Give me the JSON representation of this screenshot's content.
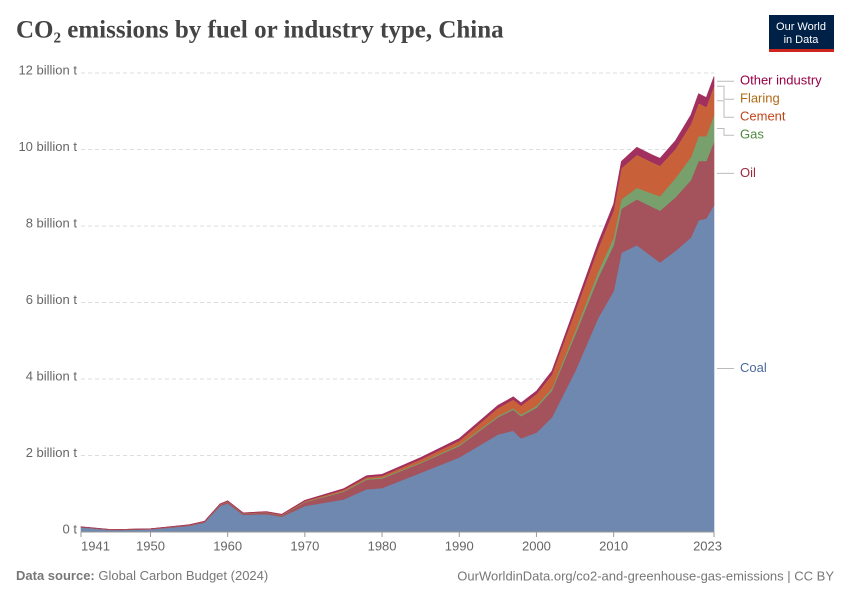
{
  "chart_data": {
    "type": "stacked-area",
    "title": "CO₂ emissions by fuel or industry type, China",
    "logo": [
      "Our World",
      "in Data"
    ],
    "source_label": "Data source:",
    "source": "Global Carbon Budget (2024)",
    "url": "OurWorldinData.org/co2-and-greenhouse-gas-emissions | CC BY",
    "x": [
      1941,
      1945,
      1950,
      1955,
      1957,
      1959,
      1960,
      1962,
      1965,
      1967,
      1970,
      1975,
      1978,
      1980,
      1985,
      1990,
      1995,
      1997,
      1998,
      2000,
      2002,
      2005,
      2008,
      2010,
      2011,
      2013,
      2015,
      2016,
      2018,
      2020,
      2021,
      2022,
      2023
    ],
    "xlim": [
      1941,
      2023
    ],
    "xticks": [
      1941,
      1950,
      1960,
      1970,
      1980,
      1990,
      2000,
      2010,
      2023
    ],
    "ylim": [
      0,
      12
    ],
    "yticks": [
      {
        "value": 0,
        "label": "0 t"
      },
      {
        "value": 2,
        "label": "2 billion t"
      },
      {
        "value": 4,
        "label": "4 billion t"
      },
      {
        "value": 6,
        "label": "6 billion t"
      },
      {
        "value": 8,
        "label": "8 billion t"
      },
      {
        "value": 10,
        "label": "10 billion t"
      },
      {
        "value": 12,
        "label": "12 billion t"
      }
    ],
    "grid": true,
    "series": [
      {
        "name": "Coal",
        "color": "#6f88b0",
        "label_color": "#4c6a9c",
        "values": [
          0.12,
          0.05,
          0.07,
          0.16,
          0.25,
          0.68,
          0.75,
          0.45,
          0.47,
          0.4,
          0.68,
          0.85,
          1.12,
          1.15,
          1.55,
          1.95,
          2.55,
          2.65,
          2.45,
          2.6,
          3.0,
          4.2,
          5.6,
          6.3,
          7.3,
          7.5,
          7.2,
          7.05,
          7.35,
          7.7,
          8.15,
          8.2,
          8.55
        ]
      },
      {
        "name": "Oil",
        "color": "#a4525b",
        "label_color": "#9a2a3c",
        "values": [
          0.01,
          0.01,
          0.01,
          0.02,
          0.02,
          0.03,
          0.04,
          0.03,
          0.04,
          0.04,
          0.1,
          0.2,
          0.25,
          0.25,
          0.25,
          0.3,
          0.45,
          0.55,
          0.58,
          0.65,
          0.7,
          0.95,
          1.05,
          1.2,
          1.15,
          1.2,
          1.3,
          1.35,
          1.4,
          1.5,
          1.55,
          1.5,
          1.65
        ]
      },
      {
        "name": "Gas",
        "color": "#78a06c",
        "label_color": "#4f8a3f",
        "values": [
          0,
          0,
          0,
          0,
          0,
          0.005,
          0.005,
          0.005,
          0.005,
          0.005,
          0.01,
          0.02,
          0.025,
          0.025,
          0.025,
          0.03,
          0.035,
          0.04,
          0.04,
          0.05,
          0.06,
          0.1,
          0.16,
          0.2,
          0.25,
          0.3,
          0.35,
          0.38,
          0.5,
          0.6,
          0.65,
          0.65,
          0.7
        ]
      },
      {
        "name": "Cement",
        "color": "#c8603a",
        "label_color": "#c0461a",
        "values": [
          0.003,
          0.002,
          0.003,
          0.005,
          0.006,
          0.01,
          0.012,
          0.008,
          0.01,
          0.01,
          0.02,
          0.03,
          0.035,
          0.04,
          0.07,
          0.1,
          0.2,
          0.22,
          0.23,
          0.3,
          0.35,
          0.5,
          0.6,
          0.7,
          0.8,
          0.85,
          0.8,
          0.78,
          0.75,
          0.85,
          0.85,
          0.75,
          0.75
        ]
      },
      {
        "name": "Flaring",
        "color": "#c88a3a",
        "label_color": "#b06a14",
        "values": [
          0,
          0,
          0,
          0,
          0,
          0,
          0,
          0,
          0,
          0,
          0.001,
          0.002,
          0.003,
          0.003,
          0.003,
          0.004,
          0.005,
          0.005,
          0.005,
          0.006,
          0.006,
          0.007,
          0.008,
          0.009,
          0.01,
          0.01,
          0.01,
          0.01,
          0.01,
          0.01,
          0.01,
          0.01,
          0.01
        ]
      },
      {
        "name": "Other industry",
        "color": "#a2305e",
        "label_color": "#970046",
        "values": [
          0.005,
          0.003,
          0.004,
          0.006,
          0.006,
          0.01,
          0.012,
          0.01,
          0.01,
          0.01,
          0.02,
          0.03,
          0.04,
          0.04,
          0.05,
          0.06,
          0.07,
          0.07,
          0.07,
          0.08,
          0.09,
          0.12,
          0.15,
          0.17,
          0.18,
          0.2,
          0.2,
          0.2,
          0.22,
          0.24,
          0.25,
          0.25,
          0.25
        ]
      }
    ]
  }
}
